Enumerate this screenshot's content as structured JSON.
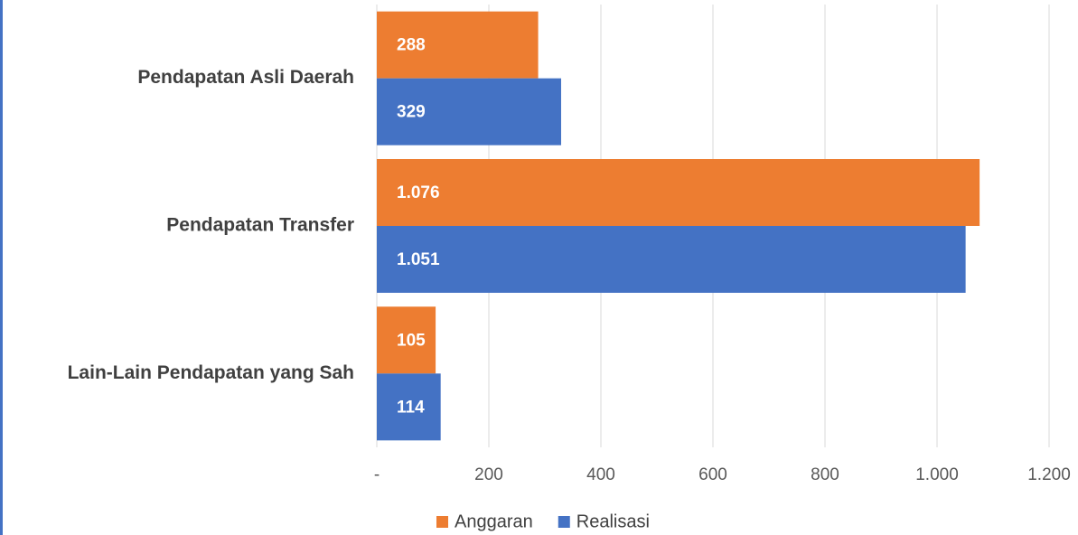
{
  "chart_data": {
    "type": "hbar",
    "categories": [
      "Pendapatan Asli Daerah",
      "Pendapatan Transfer",
      "Lain-Lain Pendapatan yang Sah"
    ],
    "series": [
      {
        "name": "Anggaran",
        "color": "#ed7d31",
        "values": [
          288,
          1076,
          105
        ],
        "value_labels": [
          "288",
          "1.076",
          "105"
        ]
      },
      {
        "name": "Realisasi",
        "color": "#4472c4",
        "values": [
          329,
          1051,
          114
        ],
        "value_labels": [
          "329",
          "1.051",
          "114"
        ]
      }
    ],
    "xlim": [
      0,
      1200
    ],
    "xticks": [
      {
        "value": 0,
        "label": "-"
      },
      200,
      400,
      600,
      800,
      {
        "value": 1000,
        "label": "1.000"
      },
      {
        "value": 1200,
        "label": "1.200"
      }
    ],
    "grid": true,
    "legend": "bottom"
  }
}
